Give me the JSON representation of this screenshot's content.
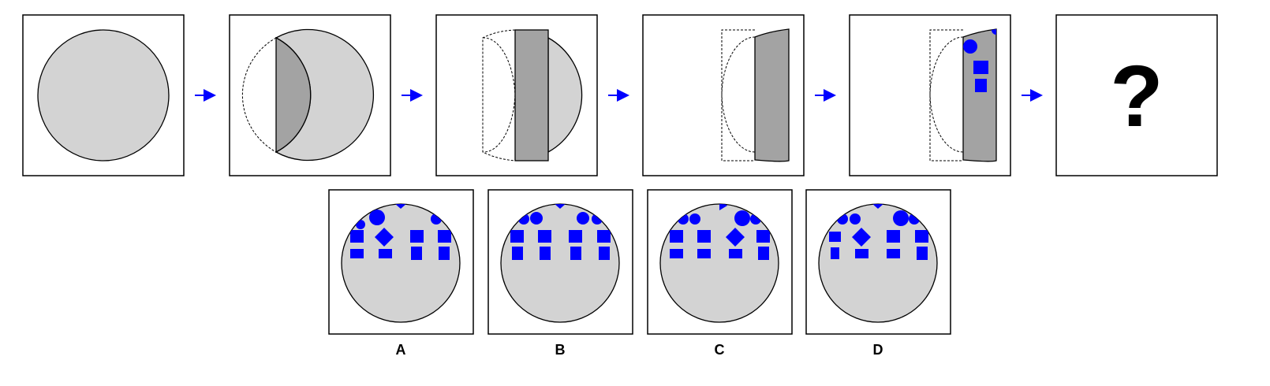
{
  "sequence": {
    "panels": [
      "panel-1-full-circle",
      "panel-2-fold-start",
      "panel-3-fold-half",
      "panel-4-fold-more",
      "panel-5-punched",
      "panel-6-question"
    ],
    "question_text": "?"
  },
  "options": [
    {
      "id": "option-a",
      "label": "A"
    },
    {
      "id": "option-b",
      "label": "B"
    },
    {
      "id": "option-c",
      "label": "C"
    },
    {
      "id": "option-d",
      "label": "D"
    }
  ],
  "colors": {
    "paper": "#d3d3d3",
    "folded": "#a3a3a3",
    "hole": "#0000ff",
    "arrow": "#0000ff",
    "frame": "#000000"
  }
}
